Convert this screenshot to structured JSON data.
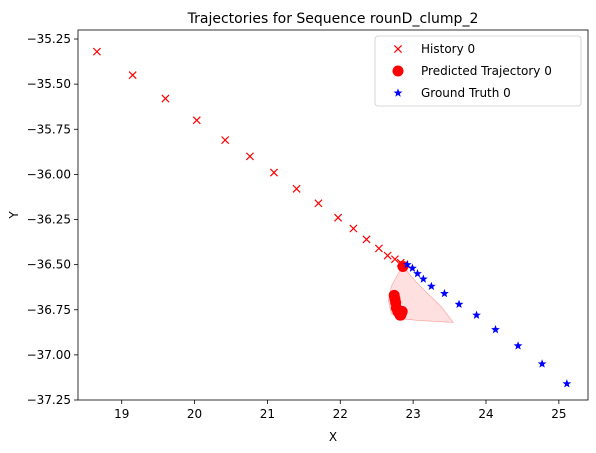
{
  "chart_data": {
    "type": "scatter",
    "title": "Trajectories for Sequence rounD_clump_2",
    "xlabel": "X",
    "ylabel": "Y",
    "xlim": [
      18.4,
      25.4
    ],
    "ylim": [
      -37.25,
      -35.2
    ],
    "xticks": [
      "19",
      "20",
      "21",
      "22",
      "23",
      "24",
      "25"
    ],
    "yticks": [
      "−35.25",
      "−35.50",
      "−35.75",
      "−36.00",
      "−36.25",
      "−36.50",
      "−36.75",
      "−37.00",
      "−37.25"
    ],
    "grid": false,
    "legend_position": "top-right",
    "series": [
      {
        "name": "History 0",
        "marker": "x",
        "color": "#ff0000",
        "x": [
          18.66,
          19.15,
          19.6,
          20.03,
          20.42,
          20.76,
          21.09,
          21.4,
          21.7,
          21.97,
          22.18,
          22.36,
          22.53,
          22.65,
          22.75,
          22.83,
          22.88
        ],
        "y": [
          -35.32,
          -35.45,
          -35.58,
          -35.7,
          -35.81,
          -35.9,
          -35.99,
          -36.08,
          -36.16,
          -36.24,
          -36.3,
          -36.36,
          -36.41,
          -36.45,
          -36.47,
          -36.49,
          -36.5
        ]
      },
      {
        "name": "Predicted Trajectory 0",
        "marker": "circle",
        "color": "#ff0000",
        "x": [
          22.86,
          22.74,
          22.75,
          22.76,
          22.77,
          22.79,
          22.81,
          22.82,
          22.83,
          22.84,
          22.85
        ],
        "y": [
          -36.51,
          -36.67,
          -36.69,
          -36.71,
          -36.74,
          -36.76,
          -36.77,
          -36.78,
          -36.78,
          -36.77,
          -36.76
        ]
      },
      {
        "name": "Ground Truth 0",
        "marker": "star",
        "color": "#0000ff",
        "x": [
          22.92,
          22.99,
          23.06,
          23.14,
          23.25,
          23.43,
          23.63,
          23.87,
          24.13,
          24.44,
          24.77,
          25.11
        ],
        "y": [
          -36.5,
          -36.52,
          -36.55,
          -36.58,
          -36.62,
          -36.66,
          -36.72,
          -36.78,
          -36.86,
          -36.95,
          -37.05,
          -37.16
        ]
      }
    ],
    "uncertainty_region": {
      "color": "#ffcccc",
      "x": [
        22.86,
        22.78,
        22.7,
        22.66,
        22.7,
        22.82,
        23.1,
        23.55,
        23.4,
        23.05,
        22.86
      ],
      "y": [
        -36.51,
        -36.56,
        -36.62,
        -36.7,
        -36.77,
        -36.8,
        -36.81,
        -36.82,
        -36.74,
        -36.6,
        -36.51
      ]
    }
  }
}
